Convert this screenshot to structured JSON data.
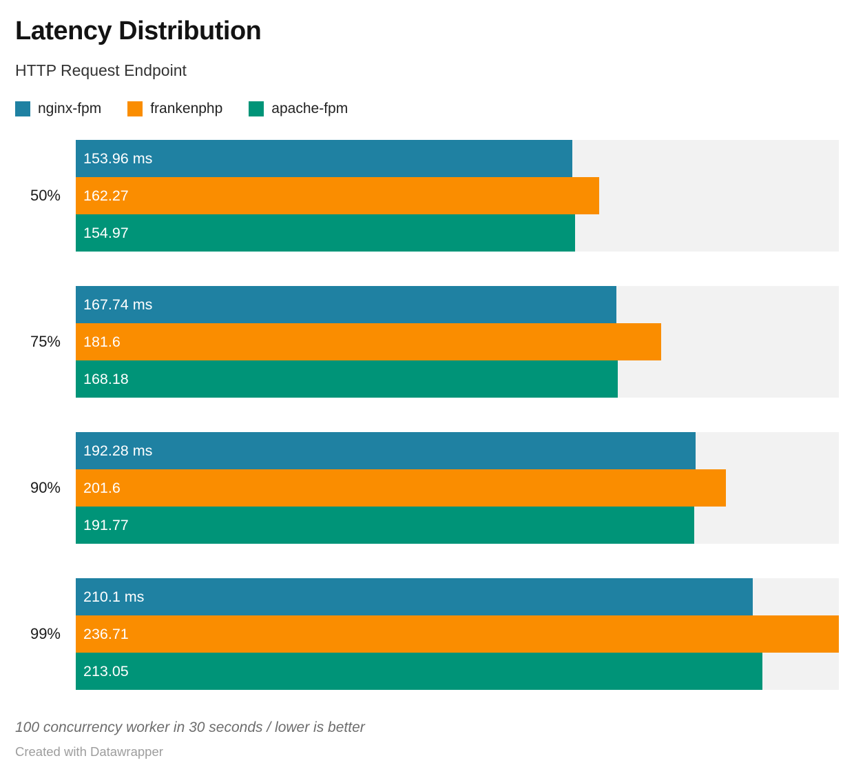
{
  "header": {
    "title": "Latency Distribution",
    "subtitle": "HTTP Request Endpoint"
  },
  "chart_data": {
    "type": "bar",
    "orientation": "horizontal",
    "title": "Latency Distribution",
    "subtitle": "HTTP Request Endpoint",
    "categories": [
      "50%",
      "75%",
      "90%",
      "99%"
    ],
    "series": [
      {
        "name": "nginx-fpm",
        "color": "#1f81a2",
        "values": [
          153.96,
          167.74,
          192.28,
          210.1
        ],
        "display_labels": [
          "153.96 ms",
          "167.74 ms",
          "192.28 ms",
          "210.1 ms"
        ]
      },
      {
        "name": "frankenphp",
        "color": "#fa8d00",
        "values": [
          162.27,
          181.6,
          201.6,
          236.71
        ],
        "display_labels": [
          "162.27",
          "181.6",
          "201.6",
          "236.71"
        ]
      },
      {
        "name": "apache-fpm",
        "color": "#009478",
        "values": [
          154.97,
          168.18,
          191.77,
          213.05
        ],
        "display_labels": [
          "154.97",
          "168.18",
          "191.77",
          "213.05"
        ]
      }
    ],
    "xlim": [
      0,
      236.71
    ],
    "unit": "ms",
    "grid": false,
    "legend_position": "top",
    "track_color": "#f2f2f2",
    "value_label_color": "#ffffff"
  },
  "footer": {
    "note": "100 concurrency worker in 30 seconds / lower is better",
    "attribution": "Created with Datawrapper"
  }
}
